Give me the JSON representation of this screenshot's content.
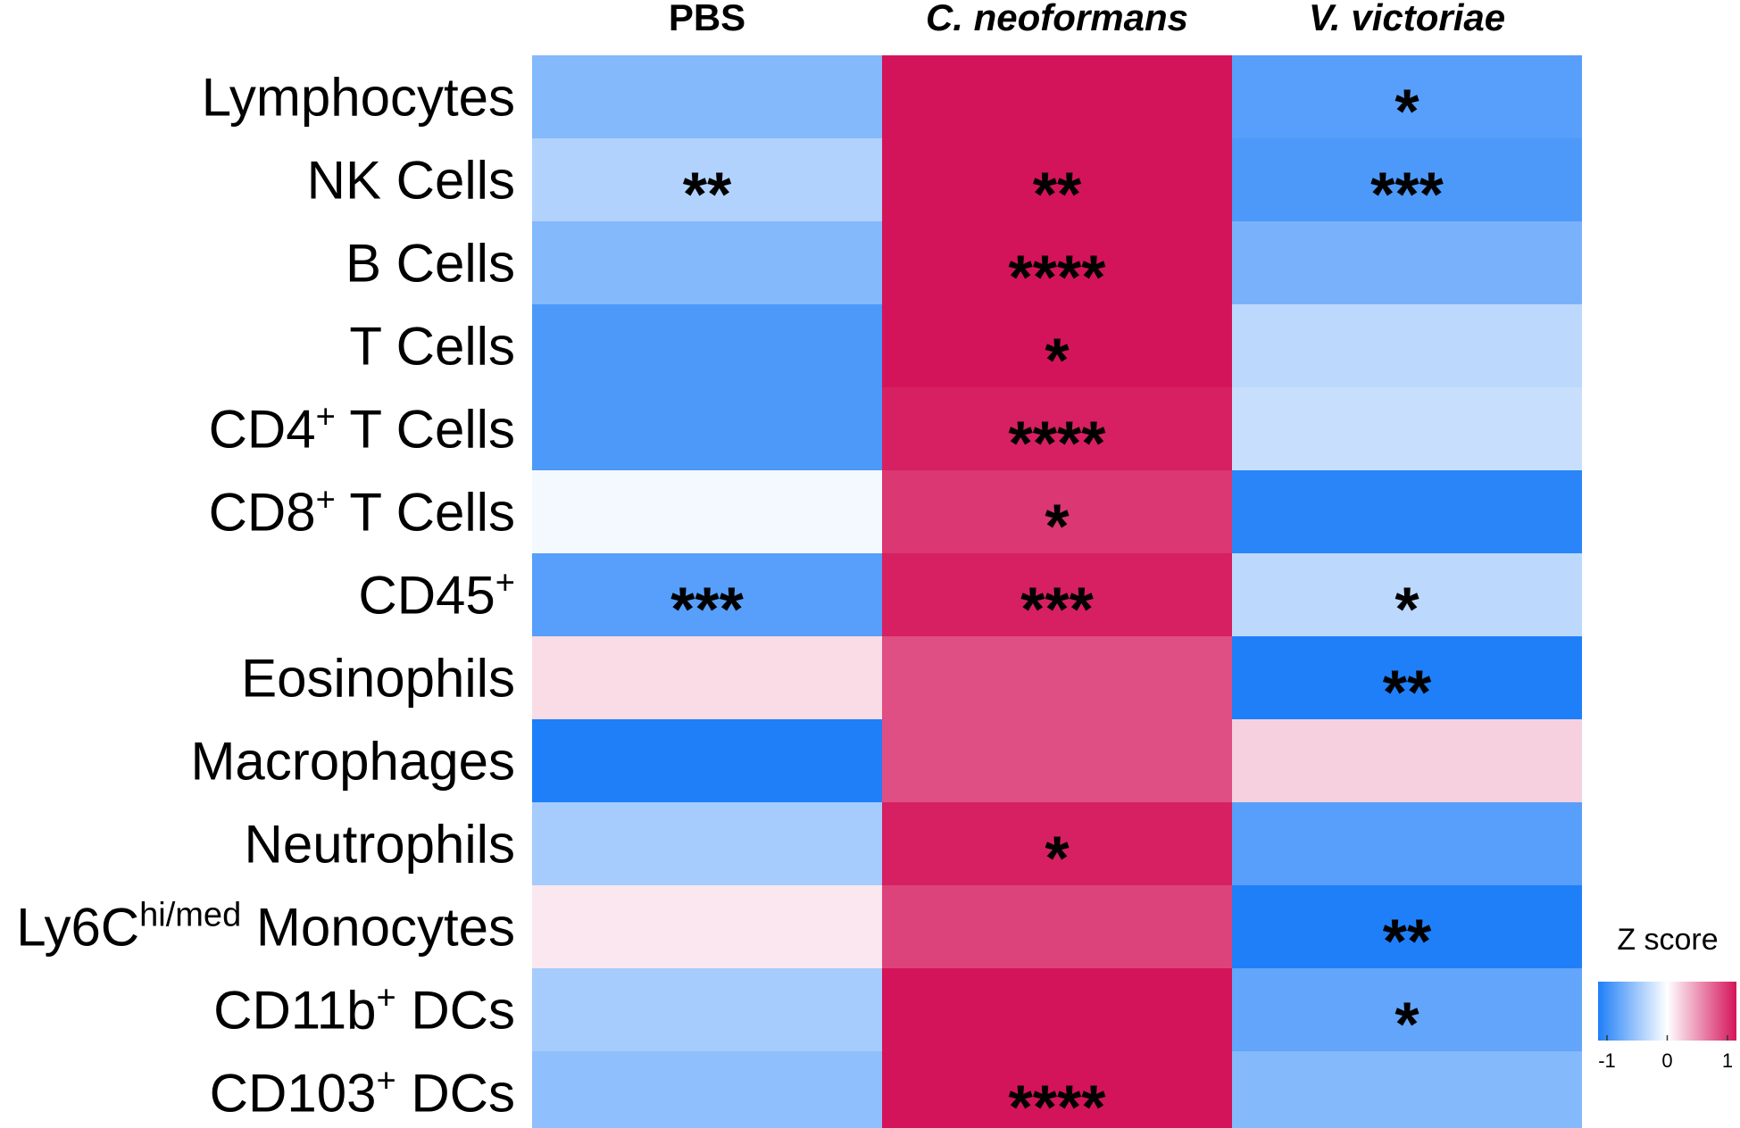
{
  "chart_data": {
    "type": "heatmap",
    "title": "",
    "columns": [
      {
        "label": "PBS",
        "italic": false
      },
      {
        "label": "C. neoformans",
        "italic": true
      },
      {
        "label": "V. victoriae",
        "italic": true
      }
    ],
    "rows": [
      {
        "label": "Lymphocytes",
        "sup": "",
        "suffix": ""
      },
      {
        "label": "NK Cells",
        "sup": "",
        "suffix": ""
      },
      {
        "label": "B Cells",
        "sup": "",
        "suffix": ""
      },
      {
        "label": "T Cells",
        "sup": "",
        "suffix": ""
      },
      {
        "label": "CD4",
        "sup": "+",
        "suffix": " T Cells"
      },
      {
        "label": "CD8",
        "sup": "+",
        "suffix": " T Cells"
      },
      {
        "label": "CD45",
        "sup": "+",
        "suffix": ""
      },
      {
        "label": "Eosinophils",
        "sup": "",
        "suffix": ""
      },
      {
        "label": "Macrophages",
        "sup": "",
        "suffix": ""
      },
      {
        "label": "Neutrophils",
        "sup": "",
        "suffix": ""
      },
      {
        "label": "Ly6C",
        "sup": "hi/med",
        "suffix": " Monocytes"
      },
      {
        "label": "CD11b",
        "sup": "+",
        "suffix": " DCs"
      },
      {
        "label": "CD103",
        "sup": "+",
        "suffix": " DCs"
      }
    ],
    "values": [
      [
        -0.55,
        1.0,
        -0.75
      ],
      [
        -0.35,
        1.0,
        -0.8
      ],
      [
        -0.55,
        1.0,
        -0.6
      ],
      [
        -0.8,
        1.0,
        -0.3
      ],
      [
        -0.8,
        0.95,
        -0.25
      ],
      [
        -0.05,
        0.85,
        -0.95
      ],
      [
        -0.75,
        0.95,
        -0.3
      ],
      [
        0.15,
        0.75,
        -1.0
      ],
      [
        -1.0,
        0.75,
        0.2
      ],
      [
        -0.4,
        0.95,
        -0.75
      ],
      [
        0.1,
        0.8,
        -1.0
      ],
      [
        -0.4,
        1.0,
        -0.7
      ],
      [
        -0.5,
        1.0,
        -0.55
      ]
    ],
    "significance": [
      [
        "",
        "",
        "*"
      ],
      [
        "**",
        "**",
        "***"
      ],
      [
        "",
        "****",
        ""
      ],
      [
        "",
        "*",
        ""
      ],
      [
        "",
        "****",
        ""
      ],
      [
        "",
        "*",
        ""
      ],
      [
        "***",
        "***",
        "*"
      ],
      [
        "",
        "",
        "**"
      ],
      [
        "",
        "",
        ""
      ],
      [
        "",
        "*",
        ""
      ],
      [
        "",
        "",
        "**"
      ],
      [
        "",
        "",
        "*"
      ],
      [
        "",
        "****",
        ""
      ]
    ],
    "color_scale": {
      "low": "#1f7ff8",
      "mid": "#ffffff",
      "high": "#d4145a",
      "range": [
        -1,
        1
      ]
    },
    "legend": {
      "title": "Z score",
      "ticks": [
        -1,
        0,
        1
      ],
      "tick_labels": [
        "-1",
        "0",
        "1"
      ],
      "placement": "bottom-right"
    }
  }
}
